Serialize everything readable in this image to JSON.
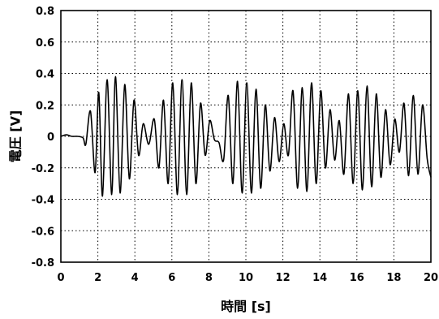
{
  "chart_data": {
    "type": "line",
    "title": "",
    "xlabel": "時間 [s]",
    "ylabel": "電圧 [V]",
    "xlim": [
      0,
      20
    ],
    "ylim": [
      -0.8,
      0.8
    ],
    "grid": true,
    "legend": "none",
    "line_color": "#000000",
    "x_ticks": [
      0,
      2,
      4,
      6,
      8,
      10,
      12,
      14,
      16,
      18,
      20
    ],
    "y_ticks": [
      0.8,
      0.6,
      0.4,
      0.2,
      0,
      -0.2,
      -0.4,
      -0.6,
      -0.8
    ],
    "x_tick_labels": [
      "0",
      "2",
      "4",
      "6",
      "8",
      "10",
      "12",
      "14",
      "16",
      "18",
      "20"
    ],
    "y_tick_labels": [
      "0.8",
      "0.6",
      "0.4",
      "0.2",
      "0",
      "-0.2",
      "-0.4",
      "-0.6",
      "-0.8"
    ],
    "series": [
      {
        "x": [
          0.0,
          0.3,
          0.6,
          0.9,
          1.2,
          1.35,
          1.6,
          1.85,
          2.05,
          2.25,
          2.5,
          2.75,
          2.95,
          3.2,
          3.45,
          3.7,
          3.95,
          4.2,
          4.45,
          4.75,
          5.05,
          5.3,
          5.55,
          5.8,
          6.05,
          6.3,
          6.55,
          6.8,
          7.05,
          7.3,
          7.55,
          7.8,
          8.05,
          8.3,
          8.55,
          8.8,
          9.05,
          9.3,
          9.55,
          9.8,
          10.05,
          10.3,
          10.55,
          10.8,
          11.05,
          11.3,
          11.55,
          11.8,
          12.05,
          12.3,
          12.55,
          12.8,
          13.05,
          13.3,
          13.55,
          13.8,
          14.05,
          14.3,
          14.55,
          14.8,
          15.05,
          15.3,
          15.55,
          15.8,
          16.05,
          16.3,
          16.55,
          16.8,
          17.05,
          17.3,
          17.55,
          17.8,
          18.05,
          18.3,
          18.55,
          18.8,
          19.05,
          19.3,
          19.55,
          19.8,
          20.0
        ],
        "y": [
          0.0,
          0.01,
          0.0,
          0.0,
          -0.01,
          -0.05,
          0.16,
          -0.23,
          0.28,
          -0.38,
          0.36,
          -0.37,
          0.38,
          -0.36,
          0.33,
          -0.27,
          0.23,
          -0.12,
          0.08,
          -0.05,
          0.11,
          -0.2,
          0.23,
          -0.3,
          0.34,
          -0.37,
          0.36,
          -0.37,
          0.34,
          -0.3,
          0.21,
          -0.12,
          0.1,
          -0.02,
          -0.04,
          -0.15,
          0.26,
          -0.3,
          0.35,
          -0.36,
          0.34,
          -0.36,
          0.3,
          -0.33,
          0.2,
          -0.22,
          0.12,
          -0.16,
          0.08,
          -0.12,
          0.29,
          -0.33,
          0.31,
          -0.35,
          0.34,
          -0.3,
          0.29,
          -0.2,
          0.17,
          -0.15,
          0.1,
          -0.24,
          0.27,
          -0.3,
          0.29,
          -0.34,
          0.32,
          -0.32,
          0.27,
          -0.26,
          0.17,
          -0.18,
          0.11,
          -0.1,
          0.21,
          -0.25,
          0.26,
          -0.24,
          0.2,
          -0.14,
          -0.26
        ]
      }
    ]
  }
}
